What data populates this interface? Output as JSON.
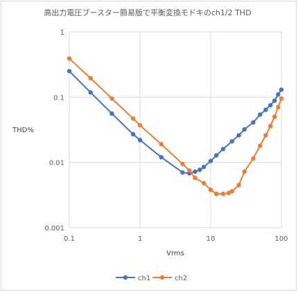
{
  "chart_data": {
    "type": "scatter",
    "title": "高出力電圧ブースター簡易版で平衡変換モドキのch1/2 THD",
    "xlabel": "Vrms",
    "ylabel": "THD%",
    "xscale": "log",
    "yscale": "log",
    "xlim": [
      0.1,
      100
    ],
    "ylim": [
      0.001,
      1
    ],
    "grid": true,
    "legend": "bottom",
    "x_tick_labels": [
      "0.1",
      "1",
      "10",
      "100"
    ],
    "y_tick_labels": [
      "0.001",
      "0.01",
      "0.1",
      "1"
    ],
    "series": [
      {
        "name": "ch1",
        "color": "#4472C4",
        "x": [
          0.1,
          0.2,
          0.4,
          0.8,
          1,
          2,
          4,
          5,
          6,
          7,
          8,
          10,
          12,
          15,
          20,
          25,
          30,
          40,
          50,
          60,
          70,
          80,
          90,
          100
        ],
        "y": [
          0.25,
          0.118,
          0.056,
          0.027,
          0.022,
          0.012,
          0.007,
          0.0068,
          0.0072,
          0.0077,
          0.0085,
          0.0105,
          0.0128,
          0.016,
          0.021,
          0.026,
          0.032,
          0.041,
          0.054,
          0.064,
          0.075,
          0.088,
          0.11,
          0.13
        ]
      },
      {
        "name": "ch2",
        "color": "#ED7D31",
        "x": [
          0.1,
          0.2,
          0.4,
          0.8,
          1,
          2,
          4,
          5,
          6,
          8,
          10,
          12,
          15,
          18,
          20,
          25,
          30,
          40,
          50,
          60,
          70,
          80,
          90,
          100
        ],
        "y": [
          0.39,
          0.195,
          0.095,
          0.047,
          0.037,
          0.019,
          0.0095,
          0.0075,
          0.0058,
          0.0048,
          0.0038,
          0.0033,
          0.0033,
          0.0034,
          0.0036,
          0.0045,
          0.0072,
          0.0115,
          0.018,
          0.026,
          0.036,
          0.05,
          0.07,
          0.095
        ]
      }
    ]
  }
}
